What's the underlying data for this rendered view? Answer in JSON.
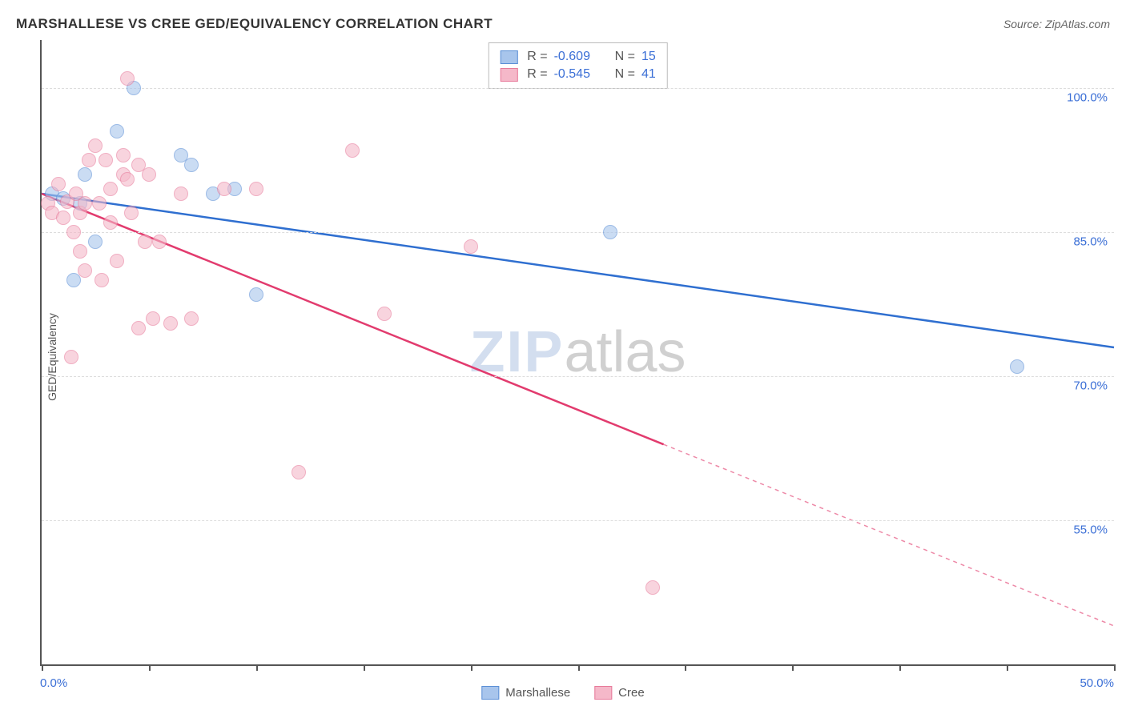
{
  "header": {
    "title": "MARSHALLESE VS CREE GED/EQUIVALENCY CORRELATION CHART",
    "source": "Source: ZipAtlas.com"
  },
  "chart": {
    "type": "scatter",
    "ylabel": "GED/Equivalency",
    "xlim": [
      0,
      50
    ],
    "ylim": [
      40,
      105
    ],
    "x_ticks": [
      0,
      5,
      10,
      15,
      20,
      25,
      30,
      35,
      40,
      45,
      50
    ],
    "x_tick_labels": {
      "0": "0.0%",
      "50": "50.0%"
    },
    "y_gridlines": [
      55,
      70,
      85,
      100
    ],
    "y_tick_labels": {
      "55": "55.0%",
      "70": "70.0%",
      "85": "85.0%",
      "100": "100.0%"
    },
    "grid_color": "#dddddd",
    "axis_color": "#555555",
    "background_color": "#ffffff",
    "watermark": {
      "part1": "ZIP",
      "part2": "atlas"
    },
    "series": [
      {
        "name": "Marshallese",
        "color_fill": "#a8c5ec",
        "color_stroke": "#5b8fd6",
        "line_color": "#2f6fd0",
        "R": "-0.609",
        "N": "15",
        "trend": {
          "x1": 0,
          "y1": 89,
          "x2": 50,
          "y2": 73,
          "solid_until_x": 50
        },
        "points": [
          [
            0.5,
            89
          ],
          [
            1.0,
            88.5
          ],
          [
            1.5,
            80
          ],
          [
            1.8,
            88
          ],
          [
            2.0,
            91
          ],
          [
            2.5,
            84
          ],
          [
            3.5,
            95.5
          ],
          [
            4.3,
            100
          ],
          [
            6.5,
            93
          ],
          [
            7.0,
            92
          ],
          [
            8.0,
            89
          ],
          [
            9.0,
            89.5
          ],
          [
            10.0,
            78.5
          ],
          [
            26.5,
            85
          ],
          [
            45.5,
            71
          ]
        ]
      },
      {
        "name": "Cree",
        "color_fill": "#f5b8c9",
        "color_stroke": "#e77a9a",
        "line_color": "#e23b6e",
        "R": "-0.545",
        "N": "41",
        "trend": {
          "x1": 0,
          "y1": 89,
          "x2": 50,
          "y2": 44,
          "solid_until_x": 29
        },
        "points": [
          [
            0.3,
            88
          ],
          [
            0.5,
            87
          ],
          [
            0.8,
            90
          ],
          [
            1.0,
            86.5
          ],
          [
            1.2,
            88.2
          ],
          [
            1.4,
            72
          ],
          [
            1.5,
            85
          ],
          [
            1.6,
            89
          ],
          [
            1.8,
            83
          ],
          [
            1.8,
            87
          ],
          [
            2.0,
            88
          ],
          [
            2.0,
            81
          ],
          [
            2.2,
            92.5
          ],
          [
            2.5,
            94
          ],
          [
            2.7,
            88
          ],
          [
            2.8,
            80
          ],
          [
            3.0,
            92.5
          ],
          [
            3.2,
            86
          ],
          [
            3.2,
            89.5
          ],
          [
            3.5,
            82
          ],
          [
            3.8,
            93
          ],
          [
            3.8,
            91
          ],
          [
            4.0,
            90.5
          ],
          [
            4.0,
            101
          ],
          [
            4.2,
            87
          ],
          [
            4.5,
            75
          ],
          [
            4.5,
            92
          ],
          [
            4.8,
            84
          ],
          [
            5.0,
            91
          ],
          [
            5.2,
            76
          ],
          [
            5.5,
            84
          ],
          [
            6.0,
            75.5
          ],
          [
            6.5,
            89
          ],
          [
            7.0,
            76
          ],
          [
            8.5,
            89.5
          ],
          [
            10.0,
            89.5
          ],
          [
            12.0,
            60
          ],
          [
            14.5,
            93.5
          ],
          [
            16.0,
            76.5
          ],
          [
            20.0,
            83.5
          ],
          [
            28.5,
            48
          ]
        ]
      }
    ],
    "legend_bottom": [
      {
        "label": "Marshallese",
        "fill": "#a8c5ec",
        "stroke": "#5b8fd6"
      },
      {
        "label": "Cree",
        "fill": "#f5b8c9",
        "stroke": "#e77a9a"
      }
    ]
  }
}
